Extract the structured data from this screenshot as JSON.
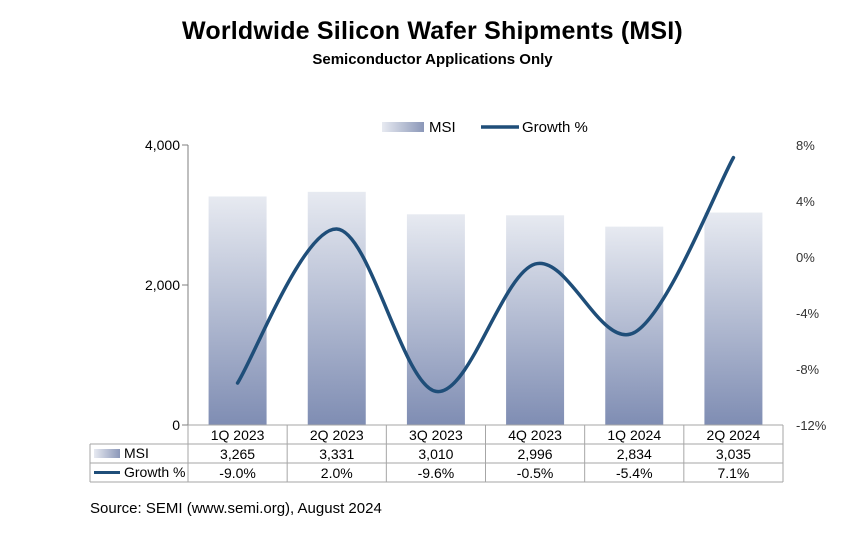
{
  "chart_data": {
    "type": "bar",
    "title": "Worldwide Silicon Wafer Shipments (MSI)",
    "subtitle": "Semiconductor Applications Only",
    "categories": [
      "1Q 2023",
      "2Q 2023",
      "3Q 2023",
      "4Q 2023",
      "1Q 2024",
      "2Q 2024"
    ],
    "series": [
      {
        "name": "MSI",
        "type": "bar",
        "axis": "left",
        "values": [
          3265,
          3331,
          3010,
          2996,
          2834,
          3035
        ],
        "labels": [
          "3,265",
          "3,331",
          "3,010",
          "2,996",
          "2,834",
          "3,035"
        ],
        "color": "#8b97b8"
      },
      {
        "name": "Growth %",
        "type": "line",
        "axis": "right",
        "values": [
          -9.0,
          2.0,
          -9.6,
          -0.5,
          -5.4,
          7.1
        ],
        "labels": [
          "-9.0%",
          "2.0%",
          "-9.6%",
          "-0.5%",
          "-5.4%",
          "7.1%"
        ],
        "color": "#1f4e79"
      }
    ],
    "y_left": {
      "min": 0,
      "max": 4000,
      "ticks": [
        0,
        2000,
        4000
      ],
      "tick_labels": [
        "0",
        "2,000",
        "4,000"
      ]
    },
    "y_right": {
      "min": -12,
      "max": 8,
      "ticks": [
        -12,
        -8,
        -4,
        0,
        4,
        8
      ],
      "tick_labels": [
        "-12%",
        "-8%",
        "-4%",
        "0%",
        "4%",
        "8%"
      ]
    },
    "legend": {
      "placement": "top-center",
      "items": [
        "MSI",
        "Growth %"
      ]
    },
    "data_table": true,
    "grid": false,
    "source": "Source: SEMI (www.semi.org), August 2024"
  }
}
